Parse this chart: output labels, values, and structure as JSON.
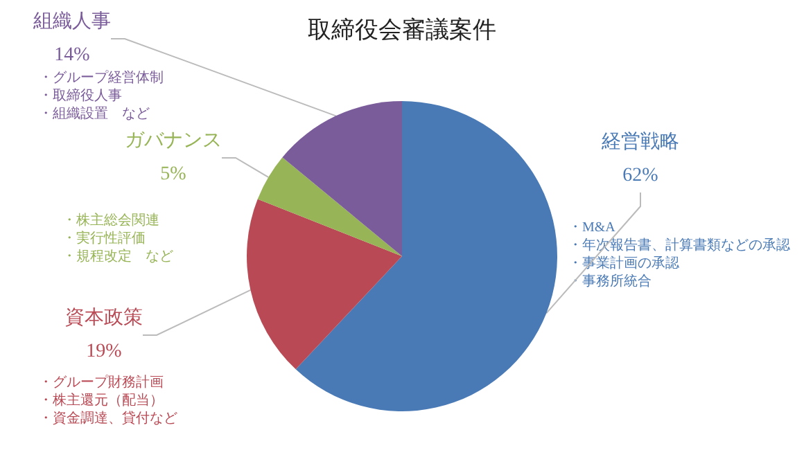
{
  "chart_data": {
    "type": "pie",
    "title": "取締役会審議案件",
    "categories": [
      "経営戦略",
      "資本政策",
      "ガバナンス",
      "組織人事"
    ],
    "values": [
      62,
      19,
      5,
      14
    ],
    "value_labels": [
      "62%",
      "19%",
      "5%",
      "14%"
    ],
    "colors": [
      "#4a7ab5",
      "#b94a55",
      "#97b456",
      "#7a5c9a"
    ],
    "annotations": [
      "・M&A",
      "・年次報告書、計算書類などの承認",
      "・事業計画の承認",
      "・事務所統合",
      "・グループ財務計画",
      "・株主還元（配当）",
      "・資金調達、貸付など",
      "・株主総会関連",
      "・実行性評価",
      "・規程改定　など",
      "・グループ経営体制",
      "・取締役人事",
      "・組織設置　など"
    ],
    "legend": false
  }
}
